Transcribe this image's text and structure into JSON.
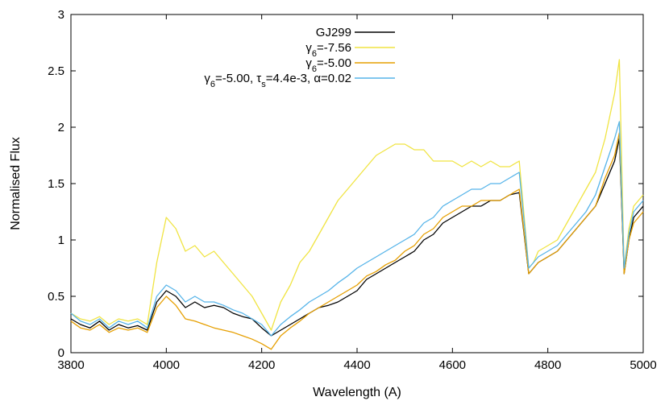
{
  "chart_data": {
    "type": "line",
    "title": "",
    "xlabel": "Wavelength (A)",
    "ylabel": "Normalised Flux",
    "xlim": [
      3800,
      5000
    ],
    "ylim": [
      0,
      3
    ],
    "x_ticks": [
      3800,
      4000,
      4200,
      4400,
      4600,
      4800,
      5000
    ],
    "y_ticks": [
      0,
      0.5,
      1,
      1.5,
      2,
      2.5,
      3
    ],
    "x_tick_labels": [
      "3800",
      "4000",
      "4200",
      "4400",
      "4600",
      "4800",
      "5000"
    ],
    "y_tick_labels": [
      "0",
      "0.5",
      "1",
      "1.5",
      "2",
      "2.5",
      "3"
    ],
    "grid": false,
    "legend_position": "top-right",
    "series": [
      {
        "name": "GJ299",
        "legend_parts": [
          {
            "t": "GJ299"
          }
        ],
        "color": "#000000",
        "x": [
          3800,
          3820,
          3840,
          3860,
          3880,
          3900,
          3920,
          3940,
          3960,
          3980,
          4000,
          4020,
          4040,
          4060,
          4080,
          4100,
          4120,
          4140,
          4160,
          4180,
          4200,
          4220,
          4240,
          4260,
          4280,
          4300,
          4320,
          4340,
          4360,
          4380,
          4400,
          4420,
          4440,
          4460,
          4480,
          4500,
          4520,
          4540,
          4560,
          4580,
          4600,
          4620,
          4640,
          4660,
          4680,
          4700,
          4720,
          4740,
          4760,
          4770,
          4780,
          4800,
          4820,
          4840,
          4860,
          4880,
          4900,
          4920,
          4940,
          4950,
          4960,
          4970,
          4980,
          5000
        ],
        "y": [
          0.3,
          0.25,
          0.22,
          0.28,
          0.2,
          0.25,
          0.22,
          0.24,
          0.2,
          0.45,
          0.55,
          0.5,
          0.4,
          0.45,
          0.4,
          0.42,
          0.4,
          0.35,
          0.32,
          0.3,
          0.22,
          0.15,
          0.2,
          0.25,
          0.3,
          0.35,
          0.4,
          0.42,
          0.45,
          0.5,
          0.55,
          0.65,
          0.7,
          0.75,
          0.8,
          0.85,
          0.9,
          1.0,
          1.05,
          1.15,
          1.2,
          1.25,
          1.3,
          1.3,
          1.35,
          1.35,
          1.4,
          1.42,
          0.7,
          0.75,
          0.8,
          0.85,
          0.9,
          1.0,
          1.1,
          1.2,
          1.3,
          1.5,
          1.7,
          1.9,
          0.7,
          1.0,
          1.2,
          1.3
        ]
      },
      {
        "name": "γ6=-7.56",
        "legend_parts": [
          {
            "t": "γ"
          },
          {
            "t": "6",
            "sub": true
          },
          {
            "t": "=-7.56"
          }
        ],
        "color": "#f0e442",
        "x": [
          3800,
          3820,
          3840,
          3860,
          3880,
          3900,
          3920,
          3940,
          3960,
          3980,
          4000,
          4020,
          4040,
          4060,
          4080,
          4100,
          4120,
          4140,
          4160,
          4180,
          4200,
          4220,
          4240,
          4260,
          4280,
          4300,
          4320,
          4340,
          4360,
          4380,
          4400,
          4420,
          4440,
          4460,
          4480,
          4500,
          4520,
          4540,
          4560,
          4580,
          4600,
          4620,
          4640,
          4660,
          4680,
          4700,
          4720,
          4740,
          4760,
          4770,
          4780,
          4800,
          4820,
          4840,
          4860,
          4880,
          4900,
          4920,
          4940,
          4950,
          4960,
          4970,
          4980,
          5000
        ],
        "y": [
          0.35,
          0.3,
          0.28,
          0.32,
          0.25,
          0.3,
          0.28,
          0.3,
          0.25,
          0.8,
          1.2,
          1.1,
          0.9,
          0.95,
          0.85,
          0.9,
          0.8,
          0.7,
          0.6,
          0.5,
          0.35,
          0.2,
          0.45,
          0.6,
          0.8,
          0.9,
          1.05,
          1.2,
          1.35,
          1.45,
          1.55,
          1.65,
          1.75,
          1.8,
          1.85,
          1.85,
          1.8,
          1.8,
          1.7,
          1.7,
          1.7,
          1.65,
          1.7,
          1.65,
          1.7,
          1.65,
          1.65,
          1.7,
          0.75,
          0.8,
          0.9,
          0.95,
          1.0,
          1.15,
          1.3,
          1.45,
          1.6,
          1.9,
          2.3,
          2.6,
          0.75,
          1.1,
          1.3,
          1.4
        ]
      },
      {
        "name": "γ6=-5.00",
        "legend_parts": [
          {
            "t": "γ"
          },
          {
            "t": "6",
            "sub": true
          },
          {
            "t": "=-5.00"
          }
        ],
        "color": "#e69f00",
        "x": [
          3800,
          3820,
          3840,
          3860,
          3880,
          3900,
          3920,
          3940,
          3960,
          3980,
          4000,
          4020,
          4040,
          4060,
          4080,
          4100,
          4120,
          4140,
          4160,
          4180,
          4200,
          4220,
          4240,
          4260,
          4280,
          4300,
          4320,
          4340,
          4360,
          4380,
          4400,
          4420,
          4440,
          4460,
          4480,
          4500,
          4520,
          4540,
          4560,
          4580,
          4600,
          4620,
          4640,
          4660,
          4680,
          4700,
          4720,
          4740,
          4760,
          4770,
          4780,
          4800,
          4820,
          4840,
          4860,
          4880,
          4900,
          4920,
          4940,
          4950,
          4960,
          4970,
          4980,
          5000
        ],
        "y": [
          0.28,
          0.22,
          0.2,
          0.25,
          0.18,
          0.22,
          0.2,
          0.22,
          0.18,
          0.4,
          0.5,
          0.42,
          0.3,
          0.28,
          0.25,
          0.22,
          0.2,
          0.18,
          0.15,
          0.12,
          0.08,
          0.03,
          0.15,
          0.22,
          0.28,
          0.35,
          0.4,
          0.45,
          0.5,
          0.55,
          0.6,
          0.68,
          0.72,
          0.78,
          0.82,
          0.9,
          0.95,
          1.05,
          1.1,
          1.2,
          1.25,
          1.3,
          1.3,
          1.35,
          1.35,
          1.35,
          1.4,
          1.45,
          0.7,
          0.75,
          0.8,
          0.85,
          0.9,
          1.0,
          1.1,
          1.2,
          1.3,
          1.55,
          1.75,
          1.95,
          0.7,
          1.0,
          1.15,
          1.25
        ]
      },
      {
        "name": "γ6=-5.00, τs=4.4e-3, α=0.02",
        "legend_parts": [
          {
            "t": "γ"
          },
          {
            "t": "6",
            "sub": true
          },
          {
            "t": "=-5.00, τ"
          },
          {
            "t": "s",
            "sub": true
          },
          {
            "t": "=4.4e-3, α=0.02"
          }
        ],
        "color": "#56b4e9",
        "x": [
          3800,
          3820,
          3840,
          3860,
          3880,
          3900,
          3920,
          3940,
          3960,
          3980,
          4000,
          4020,
          4040,
          4060,
          4080,
          4100,
          4120,
          4140,
          4160,
          4180,
          4200,
          4220,
          4240,
          4260,
          4280,
          4300,
          4320,
          4340,
          4360,
          4380,
          4400,
          4420,
          4440,
          4460,
          4480,
          4500,
          4520,
          4540,
          4560,
          4580,
          4600,
          4620,
          4640,
          4660,
          4680,
          4700,
          4720,
          4740,
          4760,
          4770,
          4780,
          4800,
          4820,
          4840,
          4860,
          4880,
          4900,
          4920,
          4940,
          4950,
          4960,
          4970,
          4980,
          5000
        ],
        "y": [
          0.35,
          0.28,
          0.25,
          0.3,
          0.22,
          0.28,
          0.25,
          0.28,
          0.22,
          0.5,
          0.6,
          0.55,
          0.45,
          0.5,
          0.45,
          0.45,
          0.42,
          0.38,
          0.35,
          0.3,
          0.25,
          0.15,
          0.25,
          0.32,
          0.38,
          0.45,
          0.5,
          0.55,
          0.62,
          0.68,
          0.75,
          0.8,
          0.85,
          0.9,
          0.95,
          1.0,
          1.05,
          1.15,
          1.2,
          1.3,
          1.35,
          1.4,
          1.45,
          1.45,
          1.5,
          1.5,
          1.55,
          1.6,
          0.75,
          0.8,
          0.85,
          0.9,
          0.95,
          1.05,
          1.15,
          1.25,
          1.4,
          1.65,
          1.9,
          2.05,
          0.75,
          1.05,
          1.25,
          1.35
        ]
      }
    ]
  }
}
